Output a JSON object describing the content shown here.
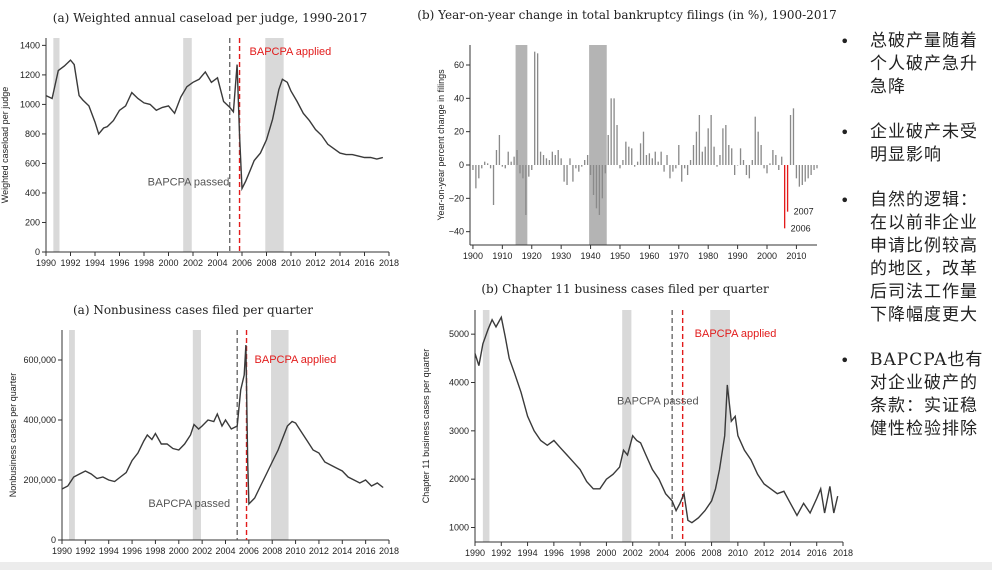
{
  "colors": {
    "line": "#3a3a3a",
    "shade": "#d9d9d9",
    "darkshade": "#b4b4b4",
    "red": "#e21b1b",
    "dashed": "#555555"
  },
  "bullets": [
    "总破产量随着个人破产急升急降",
    "企业破产未受明显影响",
    "自然的逻辑：在以前非企业申请比例较高的地区，改革后司法工作量下降幅度更大",
    "BAPCPA也有对企业破产的条款：实证稳健性检验排除"
  ],
  "chart_data": [
    {
      "type": "line",
      "title": "(a) Weighted annual caseload per judge, 1990-2017",
      "ylabel": "Weighted caseload per judge",
      "xlabel": "",
      "xlim": [
        1990,
        2018
      ],
      "ylim": [
        0,
        1450
      ],
      "xticks": [
        1990,
        1992,
        1994,
        1996,
        1998,
        2000,
        2002,
        2004,
        2006,
        2008,
        2010,
        2012,
        2014,
        2016,
        2018
      ],
      "xtick_labels": [
        "1990",
        "1992",
        "1994",
        "1996",
        "1998",
        "2000",
        "2002",
        "2004",
        "2006",
        "2008",
        "2010",
        "2012",
        "2014",
        "2016",
        "2018"
      ],
      "yticks": [
        0,
        200,
        400,
        600,
        800,
        1000,
        1200,
        1400
      ],
      "ytick_labels": [
        "0",
        "200",
        "400",
        "600",
        "800",
        "1000",
        "1200",
        "1400"
      ],
      "shaded": [
        [
          1990.6,
          1991.1
        ],
        [
          2001.2,
          2001.9
        ],
        [
          2007.9,
          2009.4
        ]
      ],
      "dashed_line": {
        "x": 2005.0,
        "label": "BAPCPA passed"
      },
      "red_line": {
        "x": 2005.8,
        "label": "BAPCPA applied"
      },
      "series": [
        {
          "x": [
            1990,
            1990.5,
            1991,
            1991.5,
            1992,
            1992.3,
            1992.7,
            1993,
            1993.5,
            1994,
            1994.3,
            1994.7,
            1995,
            1995.5,
            1996,
            1996.5,
            1997,
            1997.5,
            1998,
            1998.5,
            1999,
            1999.5,
            2000,
            2000.5,
            2001,
            2001.5,
            2002,
            2002.5,
            2003,
            2003.5,
            2004,
            2004.5,
            2005,
            2005.3,
            2005.6,
            2005.8,
            2006,
            2006.3,
            2006.7,
            2007,
            2007.5,
            2008,
            2008.5,
            2009,
            2009.3,
            2009.7,
            2010,
            2010.5,
            2011,
            2011.5,
            2012,
            2012.5,
            2013,
            2013.5,
            2014,
            2014.5,
            2015,
            2015.5,
            2016,
            2016.5,
            2017,
            2017.5
          ],
          "y": [
            1060,
            1040,
            1230,
            1260,
            1300,
            1270,
            1060,
            1030,
            990,
            880,
            800,
            840,
            850,
            890,
            960,
            990,
            1080,
            1040,
            1010,
            1000,
            960,
            980,
            990,
            940,
            1050,
            1120,
            1150,
            1170,
            1220,
            1150,
            1180,
            1020,
            980,
            950,
            1270,
            800,
            430,
            480,
            560,
            620,
            670,
            760,
            900,
            1100,
            1170,
            1150,
            1090,
            1020,
            940,
            890,
            830,
            790,
            730,
            700,
            670,
            660,
            660,
            650,
            640,
            640,
            630,
            640
          ]
        }
      ]
    },
    {
      "type": "bar",
      "title": "(b) Year-on-year change in total bankruptcy filings (in %), 1900-2017",
      "ylabel": "Year-on-year percent change in filings",
      "xlabel": "",
      "xlim": [
        1899,
        2017
      ],
      "ylim": [
        -48,
        72
      ],
      "xticks": [
        1900,
        1910,
        1920,
        1930,
        1940,
        1950,
        1960,
        1970,
        1980,
        1990,
        2000,
        2010
      ],
      "xtick_labels": [
        "1900",
        "1910",
        "1920",
        "1930",
        "1940",
        "1950",
        "1960",
        "1970",
        "1980",
        "1990",
        "2000",
        "2010"
      ],
      "yticks": [
        -40,
        -20,
        0,
        20,
        40,
        60
      ],
      "ytick_labels": [
        "−40",
        "−20",
        "0",
        "20",
        "40",
        "60"
      ],
      "shaded": [
        [
          1914.5,
          1918.5
        ],
        [
          1939.5,
          1945.5
        ]
      ],
      "annotations": [
        "2007",
        "2006"
      ],
      "highlight_years": [
        2006,
        2007
      ],
      "years": [
        1900,
        1901,
        1902,
        1903,
        1904,
        1905,
        1906,
        1907,
        1908,
        1909,
        1910,
        1911,
        1912,
        1913,
        1914,
        1915,
        1916,
        1917,
        1918,
        1919,
        1920,
        1921,
        1922,
        1923,
        1924,
        1925,
        1926,
        1927,
        1928,
        1929,
        1930,
        1931,
        1932,
        1933,
        1934,
        1935,
        1936,
        1937,
        1938,
        1939,
        1940,
        1941,
        1942,
        1943,
        1944,
        1945,
        1946,
        1947,
        1948,
        1949,
        1950,
        1951,
        1952,
        1953,
        1954,
        1955,
        1956,
        1957,
        1958,
        1959,
        1960,
        1961,
        1962,
        1963,
        1964,
        1965,
        1966,
        1967,
        1968,
        1969,
        1970,
        1971,
        1972,
        1973,
        1974,
        1975,
        1976,
        1977,
        1978,
        1979,
        1980,
        1981,
        1982,
        1983,
        1984,
        1985,
        1986,
        1987,
        1988,
        1989,
        1990,
        1991,
        1992,
        1993,
        1994,
        1995,
        1996,
        1997,
        1998,
        1999,
        2000,
        2001,
        2002,
        2003,
        2004,
        2005,
        2006,
        2007,
        2008,
        2009,
        2010,
        2011,
        2012,
        2013,
        2014,
        2015,
        2016,
        2017
      ],
      "values": [
        -3,
        -14,
        -8,
        -2,
        2,
        1,
        -2,
        -24,
        9,
        18,
        -1,
        -2,
        8,
        2,
        5,
        9,
        -5,
        -8,
        -30,
        -7,
        -3,
        68,
        67,
        8,
        6,
        4,
        3,
        8,
        6,
        9,
        4,
        -10,
        -12,
        4,
        -10,
        -2,
        -4,
        -1,
        3,
        6,
        -6,
        -18,
        -26,
        -30,
        -20,
        -5,
        18,
        40,
        40,
        24,
        -2,
        3,
        14,
        11,
        10,
        -1,
        2,
        13,
        20,
        6,
        7,
        4,
        8,
        2,
        8,
        -4,
        6,
        -8,
        -4,
        -2,
        12,
        -10,
        -2,
        -6,
        3,
        12,
        20,
        30,
        8,
        11,
        22,
        30,
        11,
        -1,
        6,
        22,
        24,
        12,
        10,
        -6,
        0,
        10,
        3,
        -6,
        -8,
        3,
        29,
        20,
        12,
        -2,
        -5,
        1,
        9,
        6,
        -3,
        5,
        -38,
        -28,
        30,
        34,
        -8,
        -13,
        -12,
        -10,
        -8,
        -6,
        -3,
        -2
      ],
      "series": [
        {
          "name": "",
          "values": []
        }
      ]
    },
    {
      "type": "line",
      "title": "(a) Nonbusiness cases filed per quarter",
      "ylabel": "Nonbusiness cases per quarter",
      "xlabel": "",
      "xlim": [
        1990,
        2018
      ],
      "ylim": [
        0,
        700000
      ],
      "xticks": [
        1990,
        1992,
        1994,
        1996,
        1998,
        2000,
        2002,
        2004,
        2006,
        2008,
        2010,
        2012,
        2014,
        2016,
        2018
      ],
      "xtick_labels": [
        "1990",
        "1992",
        "1994",
        "1996",
        "1998",
        "2000",
        "2002",
        "2004",
        "2006",
        "2008",
        "2010",
        "2012",
        "2014",
        "2016",
        "2018"
      ],
      "yticks": [
        0,
        200000,
        400000,
        600000
      ],
      "ytick_labels": [
        "0",
        "200,000",
        "400,000",
        "600,000"
      ],
      "shaded": [
        [
          1990.6,
          1991.1
        ],
        [
          2001.2,
          2001.9
        ],
        [
          2007.9,
          2009.4
        ]
      ],
      "dashed_line": {
        "x": 2005.0,
        "label": "BAPCPA passed"
      },
      "red_line": {
        "x": 2005.8,
        "label": "BAPCPA applied"
      },
      "series": [
        {
          "x": [
            1990,
            1990.5,
            1991,
            1991.5,
            1992,
            1992.5,
            1993,
            1993.5,
            1994,
            1994.5,
            1995,
            1995.5,
            1996,
            1996.5,
            1997,
            1997.3,
            1997.7,
            1998,
            1998.5,
            1999,
            1999.5,
            2000,
            2000.5,
            2001,
            2001.3,
            2001.7,
            2002,
            2002.5,
            2003,
            2003.3,
            2003.7,
            2004,
            2004.5,
            2005,
            2005.3,
            2005.6,
            2005.75,
            2005.9,
            2006,
            2006.5,
            2007,
            2007.5,
            2008,
            2008.5,
            2009,
            2009.3,
            2009.7,
            2010,
            2010.5,
            2011,
            2011.5,
            2012,
            2012.5,
            2013,
            2013.5,
            2014,
            2014.5,
            2015,
            2015.5,
            2016,
            2016.5,
            2017,
            2017.5
          ],
          "y": [
            170000,
            180000,
            210000,
            220000,
            230000,
            220000,
            205000,
            210000,
            200000,
            195000,
            210000,
            225000,
            265000,
            290000,
            330000,
            350000,
            335000,
            355000,
            320000,
            320000,
            305000,
            300000,
            320000,
            350000,
            385000,
            370000,
            380000,
            400000,
            395000,
            420000,
            380000,
            400000,
            370000,
            380000,
            500000,
            550000,
            650000,
            260000,
            120000,
            140000,
            180000,
            220000,
            260000,
            300000,
            350000,
            380000,
            395000,
            390000,
            360000,
            330000,
            300000,
            290000,
            260000,
            250000,
            240000,
            230000,
            210000,
            200000,
            190000,
            200000,
            180000,
            190000,
            175000
          ]
        }
      ]
    },
    {
      "type": "line",
      "title": "(b) Chapter 11 business cases filed per quarter",
      "ylabel": "Chapter 11 business cases per quarter",
      "xlabel": "",
      "xlim": [
        1990,
        2018
      ],
      "ylim": [
        700,
        5500
      ],
      "xticks": [
        1990,
        1992,
        1994,
        1996,
        1998,
        2000,
        2002,
        2004,
        2006,
        2008,
        2010,
        2012,
        2014,
        2016,
        2018
      ],
      "xtick_labels": [
        "1990",
        "1992",
        "1994",
        "1996",
        "1998",
        "2000",
        "2002",
        "2004",
        "2006",
        "2008",
        "2010",
        "2012",
        "2014",
        "2016",
        "2018"
      ],
      "yticks": [
        1000,
        2000,
        3000,
        4000,
        5000
      ],
      "ytick_labels": [
        "1000",
        "2000",
        "3000",
        "4000",
        "5000"
      ],
      "shaded": [
        [
          1990.6,
          1991.1
        ],
        [
          2001.2,
          2001.9
        ],
        [
          2007.9,
          2009.4
        ]
      ],
      "dashed_line": {
        "x": 2005.0,
        "label": "BAPCPA passed"
      },
      "red_line": {
        "x": 2005.8,
        "label": "BAPCPA applied"
      },
      "series": [
        {
          "x": [
            1990,
            1990.3,
            1990.6,
            1991,
            1991.3,
            1991.6,
            1992,
            1992.3,
            1992.6,
            1993,
            1993.5,
            1994,
            1994.5,
            1995,
            1995.5,
            1996,
            1996.5,
            1997,
            1997.5,
            1998,
            1998.5,
            1999,
            1999.5,
            2000,
            2000.5,
            2001,
            2001.3,
            2001.6,
            2002,
            2002.3,
            2002.6,
            2003,
            2003.5,
            2004,
            2004.5,
            2005,
            2005.3,
            2005.6,
            2005.9,
            2006.2,
            2006.5,
            2007,
            2007.5,
            2008,
            2008.3,
            2008.6,
            2009,
            2009.2,
            2009.5,
            2009.8,
            2010,
            2010.5,
            2011,
            2011.5,
            2012,
            2012.5,
            2013,
            2013.5,
            2014,
            2014.5,
            2015,
            2015.5,
            2016,
            2016.3,
            2016.6,
            2017,
            2017.3,
            2017.6
          ],
          "y": [
            4600,
            4350,
            4800,
            5100,
            5300,
            5150,
            5350,
            4950,
            4500,
            4200,
            3800,
            3300,
            3000,
            2800,
            2700,
            2800,
            2650,
            2500,
            2350,
            2200,
            1950,
            1800,
            1800,
            2000,
            2100,
            2250,
            2600,
            2500,
            2900,
            2800,
            2750,
            2500,
            2200,
            2000,
            1700,
            1550,
            1350,
            1500,
            1700,
            1150,
            1100,
            1200,
            1350,
            1550,
            1800,
            2200,
            2900,
            3950,
            3200,
            3300,
            2900,
            2600,
            2400,
            2100,
            1900,
            1800,
            1700,
            1750,
            1500,
            1250,
            1500,
            1300,
            1600,
            1800,
            1300,
            1850,
            1300,
            1650
          ]
        }
      ]
    }
  ]
}
